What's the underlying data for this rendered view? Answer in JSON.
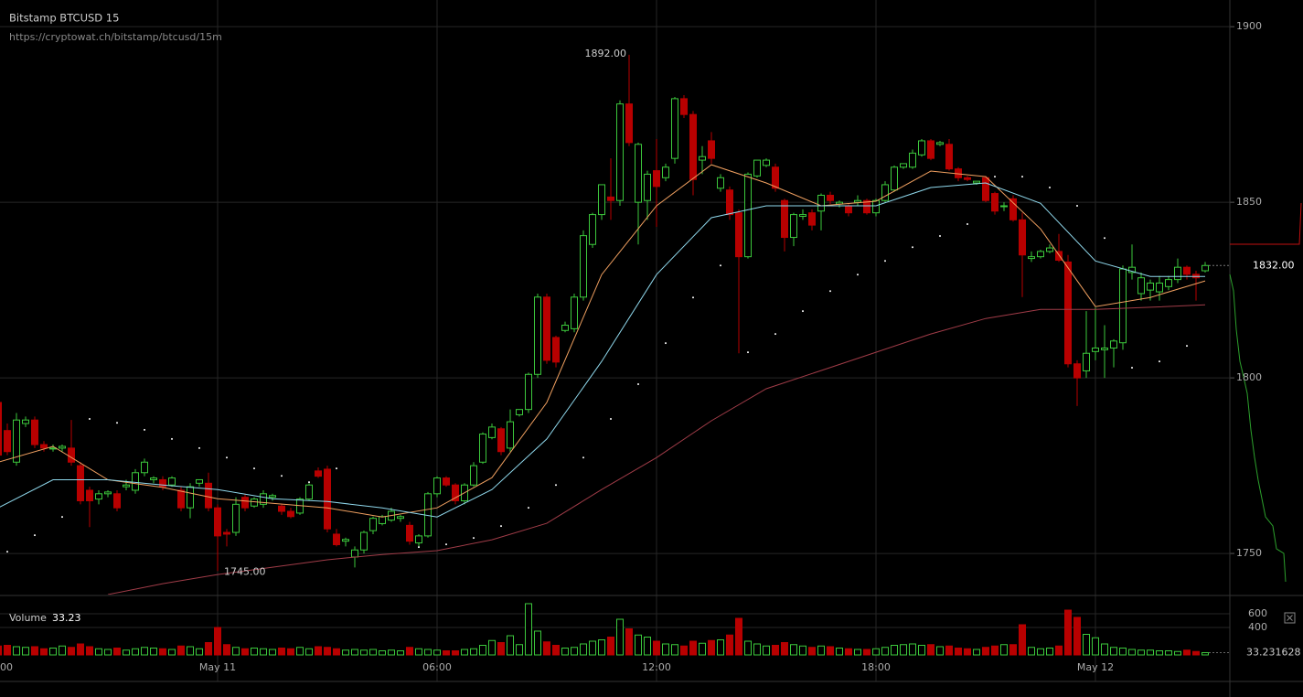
{
  "chart_data": {
    "type": "candlestick",
    "title": "Bitstamp BTCUSD 15",
    "subtitle": "https://cryptowat.ch/bitstamp/btcusd/15m",
    "up_color": "#3cc83c",
    "down_color": "#b80000",
    "grid": true,
    "x": [
      0,
      1,
      2,
      3,
      4,
      5,
      6,
      7,
      8,
      9,
      10,
      11,
      12,
      13,
      14,
      15,
      16,
      17,
      18,
      19,
      20,
      21,
      22,
      23,
      24,
      25,
      26,
      27,
      28,
      29,
      30,
      31,
      32,
      33,
      34,
      35,
      36,
      37,
      38,
      39,
      40,
      41,
      42,
      43,
      44,
      45,
      46,
      47,
      48,
      49,
      50,
      51,
      52,
      53,
      54,
      55,
      56,
      57,
      58,
      59,
      60,
      61,
      62,
      63,
      64,
      65,
      66,
      67,
      68,
      69,
      70,
      71,
      72,
      73,
      74,
      75,
      76,
      77,
      78,
      79,
      80,
      81,
      82,
      83,
      84,
      85,
      86,
      87,
      88,
      89,
      90,
      91,
      92,
      93,
      94,
      95,
      96,
      97,
      98,
      99,
      100,
      101,
      102,
      103,
      104,
      105,
      106,
      107,
      108,
      109,
      110,
      111,
      112,
      113,
      114,
      115,
      116,
      117,
      118,
      119,
      120,
      121,
      122,
      123,
      124,
      125,
      126,
      127,
      128,
      129,
      130,
      131,
      132
    ],
    "open": [
      1793,
      1785,
      1776,
      1787,
      1788,
      1781,
      1780,
      1780,
      1780,
      1775,
      1768,
      1765.5,
      1767,
      1767,
      1769,
      1768,
      1773,
      1771,
      1771,
      1769.5,
      1768,
      1763,
      1770,
      1770,
      1763,
      1756,
      1756,
      1766,
      1763.5,
      1764,
      1766,
      1763.5,
      1762,
      1761.5,
      1765.5,
      1773.5,
      1774,
      1755.5,
      1753.5,
      1749,
      1751,
      1756.5,
      1758.5,
      1759.5,
      1760,
      1758,
      1753,
      1755,
      1767,
      1771.5,
      1769.5,
      1765,
      1769.5,
      1776,
      1783,
      1785.5,
      1780,
      1789.5,
      1791,
      1801,
      1823,
      1811.5,
      1813.5,
      1814,
      1823,
      1838,
      1846.5,
      1851.5,
      1850.5,
      1878,
      1850,
      1850.5,
      1859,
      1857,
      1862.5,
      1879.5,
      1875,
      1862,
      1867.5,
      1854,
      1853.5,
      1847,
      1834.5,
      1857.5,
      1860.5,
      1860,
      1850.5,
      1840,
      1846,
      1847,
      1847.5,
      1852,
      1849.5,
      1849,
      1850,
      1850.5,
      1847,
      1850.5,
      1853.5,
      1860,
      1860,
      1863.5,
      1867.5,
      1866.5,
      1866.5,
      1859.5,
      1857,
      1855.5,
      1857,
      1852.5,
      1849,
      1851,
      1845,
      1834,
      1834.5,
      1836,
      1836,
      1833,
      1804,
      1802,
      1807.5,
      1808,
      1808.5,
      1810,
      1830,
      1824,
      1825,
      1824.5,
      1826,
      1828,
      1831.5,
      1829.5,
      1830.5
    ],
    "high": [
      1796,
      1787,
      1790,
      1789,
      1789,
      1782,
      1781,
      1781,
      1788,
      1776,
      1769,
      1768,
      1768,
      1768,
      1771,
      1774,
      1777,
      1772,
      1772,
      1772,
      1769,
      1770,
      1771,
      1773,
      1764,
      1757,
      1766,
      1767,
      1766,
      1768,
      1767,
      1764,
      1763,
      1766,
      1770,
      1774.5,
      1775,
      1757,
      1754.5,
      1752,
      1756.5,
      1760.5,
      1761,
      1763,
      1761,
      1759,
      1755.5,
      1767.5,
      1772,
      1772,
      1770,
      1770,
      1776,
      1784.5,
      1787,
      1786,
      1791,
      1791,
      1801.5,
      1824,
      1824,
      1812,
      1816,
      1824,
      1842,
      1847,
      1855,
      1862.5,
      1879,
      1892,
      1867,
      1859,
      1868,
      1861,
      1880,
      1880.5,
      1876,
      1866,
      1870,
      1858,
      1854.5,
      1848,
      1858.5,
      1862,
      1862.5,
      1861,
      1851,
      1847,
      1848,
      1848,
      1852.5,
      1853,
      1850.5,
      1849.5,
      1852,
      1851,
      1851,
      1856,
      1860.5,
      1861,
      1865,
      1868,
      1868,
      1867.5,
      1868,
      1860,
      1857.5,
      1856,
      1857.5,
      1853,
      1850,
      1852,
      1847,
      1836,
      1836.5,
      1838,
      1841,
      1835,
      1805,
      1819,
      1820,
      1815,
      1811,
      1832,
      1838,
      1830,
      1828,
      1829,
      1829,
      1834,
      1832,
      1830.5,
      1833
    ],
    "low": [
      1777,
      1778,
      1775,
      1786,
      1780,
      1779,
      1779,
      1779,
      1775,
      1764,
      1757.5,
      1764,
      1766,
      1762,
      1768,
      1767,
      1772,
      1770,
      1768,
      1769,
      1762,
      1760,
      1769,
      1762,
      1745,
      1752,
      1755,
      1762,
      1763,
      1763,
      1765,
      1761,
      1760,
      1761,
      1765,
      1771.5,
      1756,
      1752,
      1752,
      1746,
      1750,
      1755.5,
      1758,
      1759,
      1759,
      1752.5,
      1752,
      1754.5,
      1766,
      1769,
      1764,
      1764,
      1769,
      1775.5,
      1782.5,
      1778,
      1779,
      1789,
      1790,
      1800,
      1804,
      1803,
      1813,
      1813,
      1822,
      1837,
      1845,
      1845,
      1849,
      1866,
      1838,
      1845,
      1843,
      1856,
      1861,
      1874,
      1852,
      1858,
      1861,
      1853,
      1845,
      1807,
      1834,
      1857,
      1860,
      1853,
      1836,
      1837.5,
      1845,
      1842,
      1842,
      1849.5,
      1848.5,
      1846,
      1849,
      1846.5,
      1846,
      1850,
      1853,
      1859.5,
      1859.5,
      1863,
      1862,
      1866,
      1859,
      1856,
      1856,
      1855,
      1850,
      1846.5,
      1847.5,
      1844.5,
      1823,
      1833,
      1834,
      1835.5,
      1833,
      1803,
      1792,
      1800,
      1805,
      1800,
      1803,
      1808,
      1828,
      1822,
      1822,
      1822,
      1825,
      1827,
      1828,
      1822,
      1830
    ],
    "close": [
      1778,
      1779,
      1788,
      1788,
      1781,
      1780,
      1780,
      1780.5,
      1776,
      1765,
      1765,
      1767,
      1767.5,
      1763,
      1769.5,
      1773,
      1776,
      1771.5,
      1769,
      1771.5,
      1763,
      1769,
      1771,
      1763,
      1755,
      1755.5,
      1764,
      1763,
      1765.5,
      1767,
      1766.5,
      1762,
      1760.5,
      1765.5,
      1769.5,
      1772,
      1757,
      1752.5,
      1754,
      1751,
      1756,
      1760,
      1760.5,
      1762,
      1760.5,
      1753.5,
      1755,
      1767,
      1771.5,
      1769.5,
      1765,
      1769.5,
      1775,
      1784,
      1786,
      1779,
      1787.5,
      1791,
      1801,
      1823,
      1805,
      1804.5,
      1815,
      1823,
      1840.5,
      1846.5,
      1855,
      1850.5,
      1878,
      1867,
      1866.5,
      1858,
      1854.5,
      1860,
      1879.5,
      1875,
      1856.5,
      1863,
      1862.5,
      1857,
      1846.5,
      1834.5,
      1858,
      1862,
      1862,
      1854,
      1840,
      1846.5,
      1846.5,
      1843.5,
      1852,
      1850.5,
      1850,
      1847,
      1850.5,
      1847,
      1850.5,
      1855,
      1860,
      1861,
      1864,
      1867.5,
      1862.5,
      1867,
      1859.5,
      1857,
      1856.5,
      1856,
      1850.5,
      1847.5,
      1849,
      1845,
      1835,
      1834.5,
      1836,
      1837,
      1833.5,
      1804,
      1800,
      1807,
      1808.5,
      1808.5,
      1810.5,
      1831,
      1831.5,
      1828.5,
      1827,
      1827,
      1828,
      1831.5,
      1829.5,
      1828.5,
      1832
    ],
    "xlim": [
      0.2,
      134.7
    ],
    "xticks": [
      {
        "value": 0,
        "label": "00"
      },
      {
        "value": 24,
        "label": "May 11"
      },
      {
        "value": 48,
        "label": "06:00"
      },
      {
        "value": 72,
        "label": "12:00"
      },
      {
        "value": 96,
        "label": "18:00"
      },
      {
        "value": 120,
        "label": "May 12"
      }
    ],
    "ylim": [
      1738.3,
      1907.6
    ],
    "yticks": [
      1750,
      1800,
      1850,
      1900
    ],
    "last_price": {
      "value": 1832,
      "label": "1832.00"
    },
    "annotations": [
      {
        "text": "1892.00",
        "value": 1892,
        "x": 69
      },
      {
        "text": "1745.00",
        "value": 1745,
        "x": 24
      }
    ],
    "overlays": [
      {
        "color": "#f0a060",
        "x": [
          0,
          6,
          12,
          18,
          24,
          30,
          36,
          42,
          48,
          54,
          60,
          66,
          72,
          78,
          84,
          90,
          96,
          102,
          108,
          114,
          120,
          126,
          132
        ],
        "values": [
          1776,
          1780.5,
          1771,
          1768.8,
          1765.6,
          1764.3,
          1763,
          1760.4,
          1763,
          1771.6,
          1793,
          1829.4,
          1849,
          1860.7,
          1855.5,
          1849,
          1850.3,
          1858.9,
          1857.3,
          1842.4,
          1820.3,
          1822.9,
          1827.6
        ]
      },
      {
        "color": "#8fd8ec",
        "x": [
          0,
          6,
          12,
          18,
          24,
          30,
          36,
          42,
          48,
          54,
          60,
          66,
          72,
          78,
          84,
          90,
          96,
          102,
          108,
          114,
          120,
          126,
          132
        ],
        "values": [
          1763,
          1771,
          1771,
          1769.5,
          1768.2,
          1765.6,
          1764.8,
          1763,
          1760.4,
          1768.2,
          1782.6,
          1804.7,
          1829.4,
          1845.6,
          1849,
          1849,
          1849,
          1854.2,
          1855.5,
          1849.7,
          1833.3,
          1828.9,
          1828.9
        ]
      },
      {
        "color": "#a03c48",
        "x": [
          12,
          18,
          24,
          30,
          36,
          42,
          48,
          54,
          60,
          66,
          72,
          78,
          84,
          90,
          96,
          102,
          108,
          114,
          120,
          126,
          132
        ],
        "values": [
          1738.3,
          1741.4,
          1744,
          1746.1,
          1748.2,
          1749.7,
          1750.8,
          1753.9,
          1758.6,
          1768.2,
          1777.3,
          1787.8,
          1796.9,
          1802.1,
          1807.3,
          1812.5,
          1816.9,
          1819.5,
          1819.5,
          1820.1,
          1820.8
        ]
      }
    ],
    "sar": {
      "color": "#ffffff",
      "x": [
        1,
        4,
        7,
        10,
        13,
        16,
        19,
        22,
        25,
        28,
        31,
        34,
        37,
        40,
        43,
        46,
        49,
        52,
        55,
        58,
        61,
        64,
        67,
        70,
        73,
        76,
        79,
        82,
        85,
        88,
        91,
        94,
        97,
        100,
        103,
        106,
        109,
        112,
        115,
        118,
        121,
        124,
        127,
        130
      ],
      "values": [
        1750.5,
        1755.2,
        1760.4,
        1788.3,
        1787.2,
        1785.2,
        1782.6,
        1780,
        1777.3,
        1774.2,
        1772.1,
        1770.3,
        1774.2,
        null,
        null,
        1751.8,
        1752.6,
        1754.4,
        1757.8,
        1763,
        1769.5,
        1777.3,
        1788.3,
        1798.2,
        1809.9,
        1822.9,
        1832,
        1807.3,
        1812.5,
        1819,
        1824.7,
        1829.4,
        1833.3,
        1837.2,
        1840.4,
        1843.8,
        1857.3,
        1857.3,
        1854.2,
        1849,
        1839.8,
        1802.9,
        1804.7,
        1809.1
      ]
    },
    "volume": {
      "title": "Volume",
      "last_label": "33.23",
      "ylim": [
        0,
        760
      ],
      "yticks": [
        400,
        600
      ],
      "last_tick": 33.231628,
      "values": [
        130,
        140,
        120,
        110,
        120,
        90,
        100,
        130,
        110,
        160,
        120,
        90,
        80,
        100,
        70,
        90,
        110,
        100,
        90,
        80,
        130,
        120,
        90,
        180,
        400,
        150,
        110,
        90,
        100,
        90,
        80,
        100,
        90,
        110,
        90,
        120,
        110,
        90,
        70,
        80,
        70,
        80,
        60,
        70,
        60,
        110,
        90,
        80,
        70,
        60,
        60,
        80,
        90,
        140,
        210,
        180,
        280,
        150,
        747,
        347,
        190,
        140,
        100,
        110,
        160,
        200,
        220,
        260,
        520,
        380,
        290,
        260,
        200,
        160,
        150,
        130,
        200,
        170,
        210,
        220,
        290,
        533,
        200,
        160,
        130,
        140,
        180,
        150,
        130,
        110,
        130,
        120,
        100,
        90,
        80,
        80,
        90,
        110,
        140,
        150,
        160,
        140,
        150,
        120,
        130,
        100,
        90,
        80,
        110,
        130,
        150,
        150,
        440,
        110,
        90,
        100,
        130,
        653,
        547,
        300,
        250,
        160,
        110,
        100,
        80,
        70,
        70,
        60,
        60,
        50,
        70,
        50,
        33.231628
      ]
    }
  }
}
